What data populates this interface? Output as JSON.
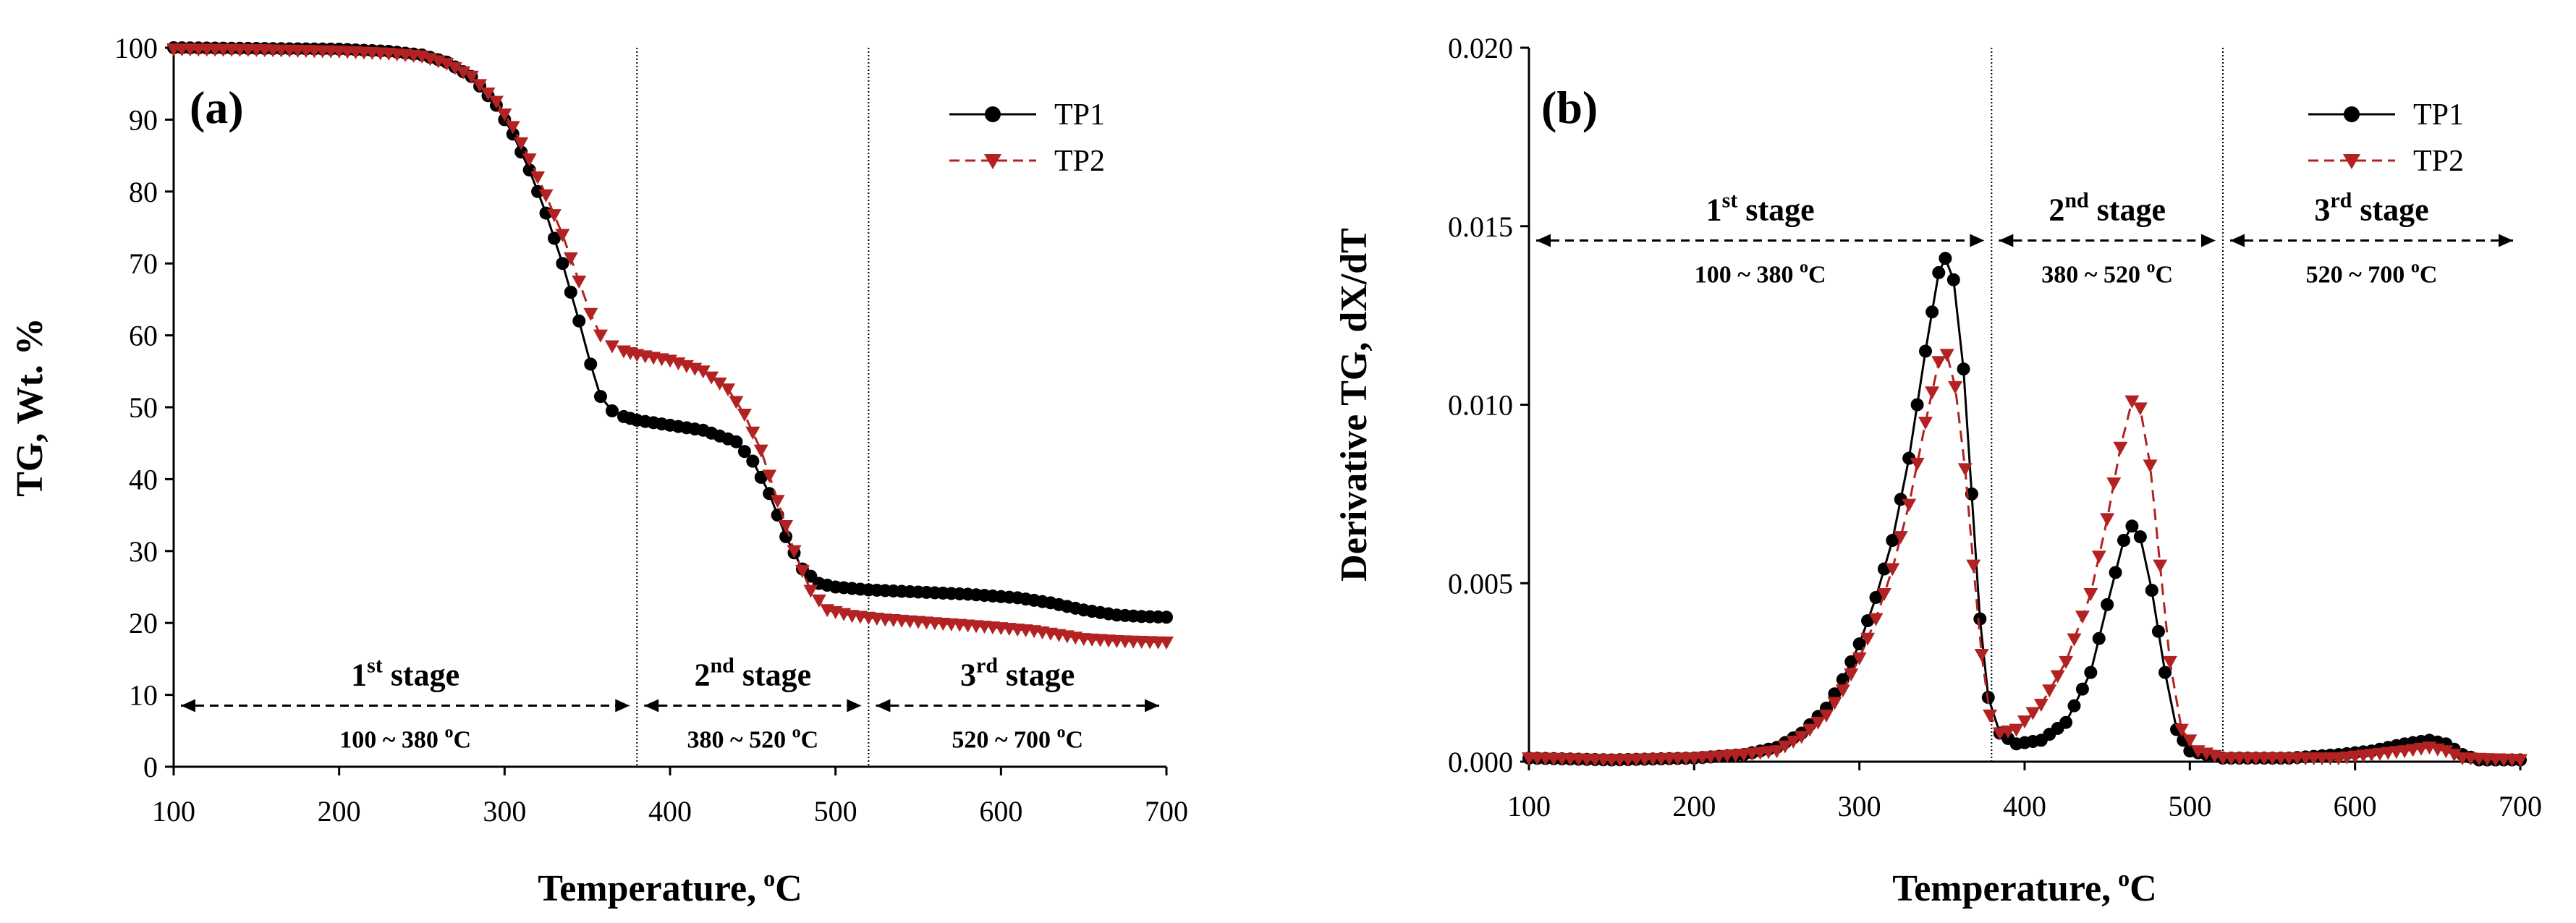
{
  "colors": {
    "tp1": "#000000",
    "tp2": "#b22222",
    "axis": "#000000",
    "divider": "#000000"
  },
  "chart_data": [
    {
      "type": "scatter",
      "panel_label": "(a)",
      "xlabel": "Temperature,",
      "xlabel_sup": "o",
      "xlabel_unit": "C",
      "ylabel": "TG, Wt. %",
      "xlim": [
        100,
        700
      ],
      "ylim": [
        0,
        100
      ],
      "xticks": [
        "100",
        "200",
        "300",
        "400",
        "500",
        "600",
        "700"
      ],
      "yticks": [
        "0",
        "10",
        "20",
        "30",
        "40",
        "50",
        "60",
        "70",
        "80",
        "90",
        "100"
      ],
      "legend_position": "top-right",
      "dividers": [
        380,
        520
      ],
      "stages_y": 8.5,
      "stages": [
        {
          "n": "1",
          "sup": "st",
          "word": "stage",
          "range": "100 ~ 380",
          "deg": "o",
          "unit": "C",
          "x1": 100,
          "x2": 380
        },
        {
          "n": "2",
          "sup": "nd",
          "word": "stage",
          "range": "380 ~ 520",
          "deg": "o",
          "unit": "C",
          "x1": 380,
          "x2": 520
        },
        {
          "n": "3",
          "sup": "rd",
          "word": "stage",
          "range": "520 ~ 700",
          "deg": "o",
          "unit": "C",
          "x1": 520,
          "x2": 700
        }
      ],
      "series": [
        {
          "name": "TP1",
          "marker": "circle",
          "dash": false,
          "points": [
            [
              100,
              100
            ],
            [
              150,
              99.9
            ],
            [
              200,
              99.8
            ],
            [
              230,
              99.5
            ],
            [
              250,
              99
            ],
            [
              265,
              98
            ],
            [
              280,
              96
            ],
            [
              295,
              92
            ],
            [
              305,
              88
            ],
            [
              315,
              83
            ],
            [
              325,
              77
            ],
            [
              335,
              70
            ],
            [
              345,
              62
            ],
            [
              352,
              56
            ],
            [
              358,
              51.5
            ],
            [
              365,
              49.5
            ],
            [
              372,
              48.7
            ],
            [
              380,
              48.2
            ],
            [
              400,
              47.5
            ],
            [
              420,
              46.8
            ],
            [
              440,
              45.2
            ],
            [
              450,
              42.5
            ],
            [
              460,
              38
            ],
            [
              470,
              32
            ],
            [
              480,
              27.5
            ],
            [
              490,
              25.5
            ],
            [
              500,
              25
            ],
            [
              520,
              24.6
            ],
            [
              550,
              24.3
            ],
            [
              580,
              24
            ],
            [
              610,
              23.5
            ],
            [
              630,
              22.8
            ],
            [
              650,
              21.8
            ],
            [
              670,
              21.1
            ],
            [
              685,
              20.9
            ],
            [
              700,
              20.8
            ]
          ]
        },
        {
          "name": "TP2",
          "marker": "triangle-down",
          "dash": true,
          "points": [
            [
              100,
              99.8
            ],
            [
              150,
              99.7
            ],
            [
              200,
              99.5
            ],
            [
              230,
              99.2
            ],
            [
              250,
              98.8
            ],
            [
              265,
              97.8
            ],
            [
              280,
              96
            ],
            [
              295,
              92.5
            ],
            [
              305,
              89
            ],
            [
              315,
              84.5
            ],
            [
              325,
              79.5
            ],
            [
              335,
              74
            ],
            [
              345,
              67.5
            ],
            [
              352,
              63
            ],
            [
              358,
              60
            ],
            [
              365,
              58.5
            ],
            [
              372,
              57.8
            ],
            [
              380,
              57.3
            ],
            [
              400,
              56.5
            ],
            [
              420,
              55
            ],
            [
              435,
              52.5
            ],
            [
              445,
              49
            ],
            [
              455,
              44
            ],
            [
              465,
              37
            ],
            [
              475,
              30
            ],
            [
              485,
              24.5
            ],
            [
              495,
              21.8
            ],
            [
              510,
              21
            ],
            [
              530,
              20.5
            ],
            [
              560,
              20
            ],
            [
              590,
              19.5
            ],
            [
              620,
              18.9
            ],
            [
              650,
              17.8
            ],
            [
              670,
              17.5
            ],
            [
              700,
              17.3
            ]
          ]
        }
      ]
    },
    {
      "type": "scatter",
      "panel_label": "(b)",
      "xlabel": "Temperature,",
      "xlabel_sup": "o",
      "xlabel_unit": "C",
      "ylabel": "Derivative TG, dX/dT",
      "xlim": [
        100,
        700
      ],
      "ylim": [
        0,
        0.02
      ],
      "xticks": [
        "100",
        "200",
        "300",
        "400",
        "500",
        "600",
        "700"
      ],
      "yticks": [
        "0.000",
        "0.005",
        "0.010",
        "0.015",
        "0.020"
      ],
      "legend_position": "top-right",
      "dividers": [
        380,
        520
      ],
      "stages_y": 0.0146,
      "stages": [
        {
          "n": "1",
          "sup": "st",
          "word": "stage",
          "range": "100 ~ 380",
          "deg": "o",
          "unit": "C",
          "x1": 100,
          "x2": 380
        },
        {
          "n": "2",
          "sup": "nd",
          "word": "stage",
          "range": "380 ~ 520",
          "deg": "o",
          "unit": "C",
          "x1": 380,
          "x2": 520
        },
        {
          "n": "3",
          "sup": "rd",
          "word": "stage",
          "range": "520 ~ 700",
          "deg": "o",
          "unit": "C",
          "x1": 520,
          "x2": 700
        }
      ],
      "series": [
        {
          "name": "TP1",
          "marker": "circle",
          "dash": false,
          "points": [
            [
              100,
              0.0001
            ],
            [
              150,
              5e-05
            ],
            [
              200,
              0.0001
            ],
            [
              230,
              0.0002
            ],
            [
              250,
              0.0004
            ],
            [
              265,
              0.0008
            ],
            [
              280,
              0.0015
            ],
            [
              290,
              0.0023
            ],
            [
              300,
              0.0033
            ],
            [
              310,
              0.0046
            ],
            [
              320,
              0.0062
            ],
            [
              330,
              0.0085
            ],
            [
              340,
              0.0115
            ],
            [
              348,
              0.0137
            ],
            [
              352,
              0.0141
            ],
            [
              357,
              0.0135
            ],
            [
              363,
              0.011
            ],
            [
              368,
              0.0075
            ],
            [
              373,
              0.004
            ],
            [
              378,
              0.0018
            ],
            [
              385,
              0.0008
            ],
            [
              395,
              0.0005
            ],
            [
              410,
              0.0006
            ],
            [
              425,
              0.0011
            ],
            [
              440,
              0.0025
            ],
            [
              450,
              0.0044
            ],
            [
              460,
              0.0062
            ],
            [
              465,
              0.0066
            ],
            [
              470,
              0.0063
            ],
            [
              477,
              0.0048
            ],
            [
              485,
              0.0025
            ],
            [
              492,
              0.0009
            ],
            [
              500,
              0.0003
            ],
            [
              520,
              0.0001
            ],
            [
              560,
              0.0001
            ],
            [
              590,
              0.0002
            ],
            [
              610,
              0.0003
            ],
            [
              630,
              0.0005
            ],
            [
              645,
              0.0006
            ],
            [
              655,
              0.0005
            ],
            [
              665,
              0.0002
            ],
            [
              675,
              5e-05
            ],
            [
              700,
              5e-05
            ]
          ]
        },
        {
          "name": "TP2",
          "marker": "triangle-down",
          "dash": true,
          "points": [
            [
              100,
              0.0001
            ],
            [
              150,
              5e-05
            ],
            [
              200,
              0.0001
            ],
            [
              230,
              0.0002
            ],
            [
              250,
              0.0003
            ],
            [
              265,
              0.0007
            ],
            [
              280,
              0.0013
            ],
            [
              290,
              0.002
            ],
            [
              300,
              0.0029
            ],
            [
              310,
              0.004
            ],
            [
              320,
              0.0054
            ],
            [
              330,
              0.0072
            ],
            [
              340,
              0.0095
            ],
            [
              348,
              0.0112
            ],
            [
              353,
              0.0114
            ],
            [
              358,
              0.0105
            ],
            [
              364,
              0.0082
            ],
            [
              369,
              0.0055
            ],
            [
              374,
              0.003
            ],
            [
              379,
              0.0013
            ],
            [
              385,
              0.0008
            ],
            [
              395,
              0.0009
            ],
            [
              410,
              0.0016
            ],
            [
              425,
              0.0028
            ],
            [
              440,
              0.0047
            ],
            [
              450,
              0.0068
            ],
            [
              458,
              0.0088
            ],
            [
              465,
              0.0101
            ],
            [
              470,
              0.0099
            ],
            [
              476,
              0.0083
            ],
            [
              482,
              0.0055
            ],
            [
              488,
              0.0028
            ],
            [
              495,
              0.0009
            ],
            [
              505,
              0.0003
            ],
            [
              520,
              0.0001
            ],
            [
              560,
              0.0001
            ],
            [
              590,
              0.0001
            ],
            [
              610,
              0.0002
            ],
            [
              630,
              0.0003
            ],
            [
              645,
              0.0004
            ],
            [
              655,
              0.0003
            ],
            [
              665,
              0.0001
            ],
            [
              700,
              5e-05
            ]
          ]
        }
      ]
    }
  ]
}
